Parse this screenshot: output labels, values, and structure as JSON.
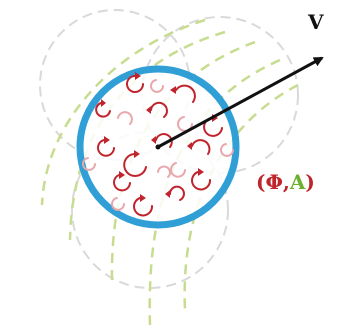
{
  "labels": {
    "velocity": "V",
    "fields_open": "(",
    "phi": "Φ",
    "comma": ",",
    "a": "A",
    "fields_close": ")"
  },
  "colors": {
    "main_circle": "#2f9fd6",
    "arrow": "#111111",
    "vortex_dark": "#c0242c",
    "vortex_light": "#e8a8ad",
    "ghost_circle": "#d9d9d9",
    "field_lines": "#c7dc8f",
    "phi": "#c0242c",
    "a": "#6bb02e"
  },
  "icons": {
    "vortex": "circular-arrow-icon"
  }
}
